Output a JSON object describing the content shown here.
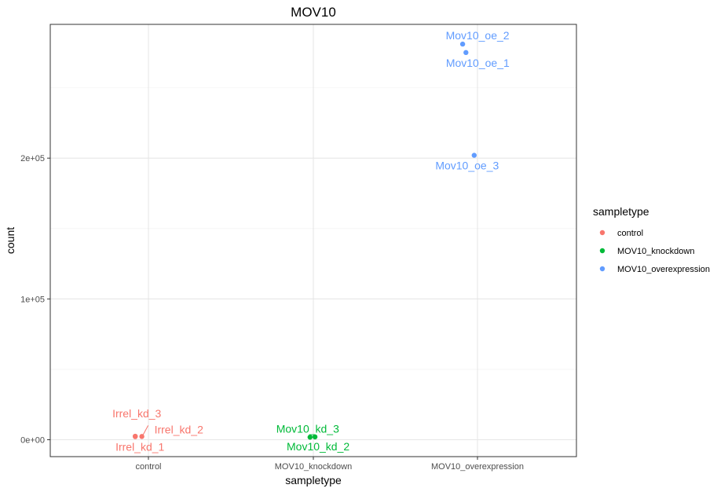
{
  "chart_data": {
    "type": "scatter",
    "title": "MOV10",
    "xlabel": "sampletype",
    "ylabel": "count",
    "categories": [
      "control",
      "MOV10_knockdown",
      "MOV10_overexpression"
    ],
    "ylim": [
      -12000,
      295000
    ],
    "y_ticks": [
      0,
      100000,
      200000
    ],
    "y_tick_labels": [
      "0e+00",
      "1e+05",
      "2e+05"
    ],
    "grid": true,
    "legend": {
      "title": "sampletype",
      "position": "right",
      "entries": [
        {
          "label": "control",
          "color": "#F8766D"
        },
        {
          "label": "MOV10_knockdown",
          "color": "#00BA38"
        },
        {
          "label": "MOV10_overexpression",
          "color": "#619CFF"
        }
      ]
    },
    "series": [
      {
        "name": "control",
        "color": "#F8766D",
        "points": [
          {
            "category": "control",
            "jitter": -0.08,
            "y": 2200,
            "label": "Irrel_kd_1"
          },
          {
            "category": "control",
            "jitter": -0.04,
            "y": 2300,
            "label": "Irrel_kd_2"
          },
          {
            "category": "control",
            "jitter": -0.08,
            "y": 2500,
            "label": "Irrel_kd_3"
          }
        ]
      },
      {
        "name": "MOV10_knockdown",
        "color": "#00BA38",
        "points": [
          {
            "category": "MOV10_knockdown",
            "jitter": 0.01,
            "y": 2000,
            "label": "Mov10_kd_2"
          },
          {
            "category": "MOV10_knockdown",
            "jitter": -0.02,
            "y": 1800,
            "label": "Mov10_kd_3"
          }
        ]
      },
      {
        "name": "MOV10_overexpression",
        "color": "#619CFF",
        "points": [
          {
            "category": "MOV10_overexpression",
            "jitter": -0.07,
            "y": 275000,
            "label": "Mov10_oe_1"
          },
          {
            "category": "MOV10_overexpression",
            "jitter": -0.09,
            "y": 281000,
            "label": "Mov10_oe_2"
          },
          {
            "category": "MOV10_overexpression",
            "jitter": -0.02,
            "y": 202000,
            "label": "Mov10_oe_3"
          }
        ]
      }
    ]
  }
}
